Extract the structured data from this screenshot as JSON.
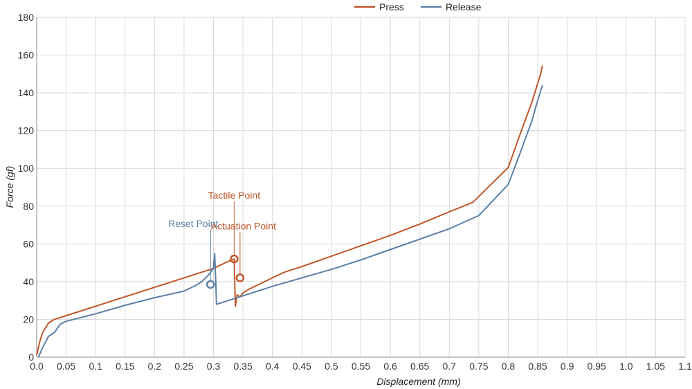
{
  "chart_data": {
    "type": "line",
    "xlabel": "Displacement (mm)",
    "ylabel": "Force (gf)",
    "xlim": [
      0,
      1.1
    ],
    "ylim": [
      0,
      180
    ],
    "x_ticks": [
      "0.0",
      "0.05",
      "0.1",
      "0.15",
      "0.2",
      "0.25",
      "0.3",
      "0.35",
      "0.4",
      "0.45",
      "0.5",
      "0.55",
      "0.6",
      "0.65",
      "0.7",
      "0.75",
      "0.8",
      "0.85",
      "0.9",
      "0.95",
      "1.0",
      "1.05",
      "1.1"
    ],
    "y_ticks": [
      "0",
      "20",
      "40",
      "60",
      "80",
      "100",
      "120",
      "140",
      "160",
      "180"
    ],
    "grid": true,
    "legend_position": "top-right",
    "series": [
      {
        "name": "Press",
        "color": "#c0562a",
        "x": [
          0.0,
          0.005,
          0.01,
          0.02,
          0.03,
          0.05,
          0.1,
          0.15,
          0.2,
          0.25,
          0.3,
          0.32,
          0.335,
          0.337,
          0.34,
          0.345,
          0.35,
          0.36,
          0.38,
          0.4,
          0.42,
          0.45,
          0.5,
          0.55,
          0.6,
          0.65,
          0.7,
          0.74,
          0.8,
          0.82,
          0.84,
          0.855,
          0.858
        ],
        "y": [
          1,
          8,
          13,
          18,
          20,
          22,
          27,
          32,
          37,
          42,
          47,
          50,
          52,
          27,
          33,
          32,
          34,
          36,
          39,
          42,
          45,
          48,
          53.5,
          59,
          64.5,
          70.5,
          77,
          82,
          100.5,
          118,
          135,
          150,
          154.5
        ]
      },
      {
        "name": "Release",
        "color": "#5b7fa6",
        "x": [
          0.003,
          0.01,
          0.02,
          0.03,
          0.04,
          0.05,
          0.1,
          0.15,
          0.2,
          0.25,
          0.27,
          0.28,
          0.29,
          0.3,
          0.302,
          0.304,
          0.305,
          0.31,
          0.35,
          0.4,
          0.45,
          0.5,
          0.55,
          0.6,
          0.65,
          0.7,
          0.75,
          0.8,
          0.82,
          0.84,
          0.85,
          0.858
        ],
        "y": [
          0,
          5,
          11,
          13,
          17.5,
          19,
          23,
          27.5,
          31.5,
          35,
          38,
          40,
          43,
          47,
          55,
          38,
          28,
          28.5,
          32.5,
          37.5,
          42,
          46.5,
          51.5,
          57,
          62.5,
          68,
          75,
          91.5,
          108,
          125,
          136,
          144
        ]
      }
    ],
    "annotations": [
      {
        "text": "Tactile Point",
        "color": "#c0562a",
        "x": 0.335,
        "y": 52
      },
      {
        "text": "Actuation Point",
        "color": "#c0562a",
        "x": 0.345,
        "y": 42
      },
      {
        "text": "Reset Point",
        "color": "#5b7fa6",
        "x": 0.295,
        "y": 38.5
      }
    ]
  }
}
